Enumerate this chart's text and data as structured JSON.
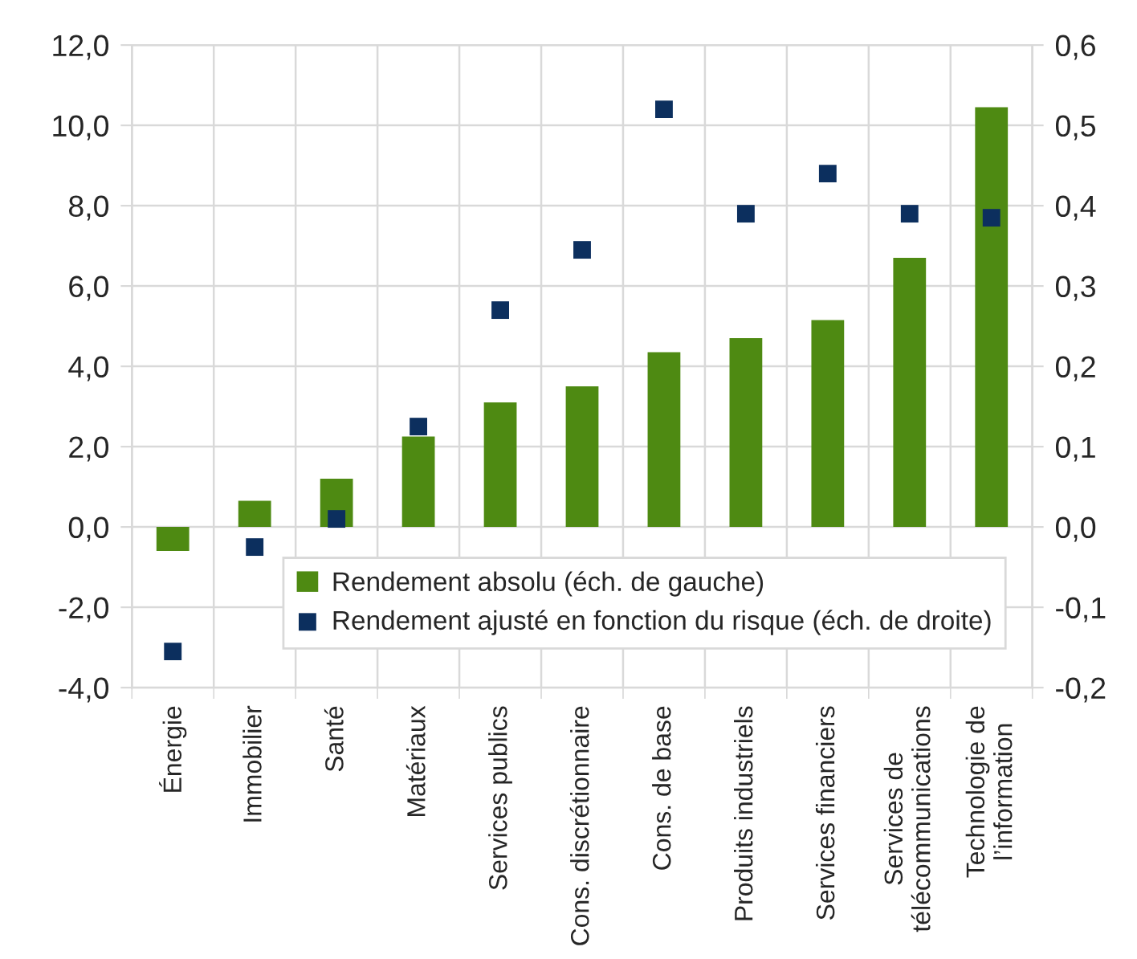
{
  "chart_data": {
    "type": "bar",
    "categories": [
      "Énergie",
      "Immobilier",
      "Santé",
      "Matériaux",
      "Services publics",
      "Cons. discrétionnaire",
      "Cons. de base",
      "Produits industriels",
      "Services financiers",
      "Services de\ntélécommunications",
      "Technologie de\nl’information"
    ],
    "series": [
      {
        "name": "Rendement absolu (éch. de gauche)",
        "color": "#4e8a12",
        "values": [
          -0.6,
          0.65,
          1.2,
          2.25,
          3.1,
          3.5,
          4.35,
          4.7,
          5.15,
          6.7,
          10.45
        ]
      },
      {
        "name": "Rendement ajusté en fonction du risque (éch. de droite)",
        "type": "scatter",
        "axis": "y2",
        "color": "#0c2f5e",
        "values": [
          -0.155,
          -0.025,
          0.01,
          0.125,
          0.27,
          0.345,
          0.52,
          0.39,
          0.44,
          0.39,
          0.385
        ]
      }
    ],
    "ylim": [
      -4,
      12
    ],
    "yticks": [
      {
        "value": -4,
        "label": "-4,0"
      },
      {
        "value": -2,
        "label": "-2,0"
      },
      {
        "value": 0,
        "label": "0,0"
      },
      {
        "value": 2,
        "label": "2,0"
      },
      {
        "value": 4,
        "label": "4,0"
      },
      {
        "value": 6,
        "label": "6,0"
      },
      {
        "value": 8,
        "label": "8,0"
      },
      {
        "value": 10,
        "label": "10,0"
      },
      {
        "value": 12,
        "label": "12,0"
      }
    ],
    "y2lim": [
      -0.2,
      0.6
    ],
    "y2ticks": [
      {
        "value": -0.2,
        "label": "-0,2"
      },
      {
        "value": -0.1,
        "label": "-0,1"
      },
      {
        "value": 0,
        "label": "0,0"
      },
      {
        "value": 0.1,
        "label": "0,1"
      },
      {
        "value": 0.2,
        "label": "0,2"
      },
      {
        "value": 0.3,
        "label": "0,3"
      },
      {
        "value": 0.4,
        "label": "0,4"
      },
      {
        "value": 0.5,
        "label": "0,5"
      },
      {
        "value": 0.6,
        "label": "0,6"
      }
    ],
    "grid": true,
    "legend": "bottom right",
    "marker": "square"
  }
}
